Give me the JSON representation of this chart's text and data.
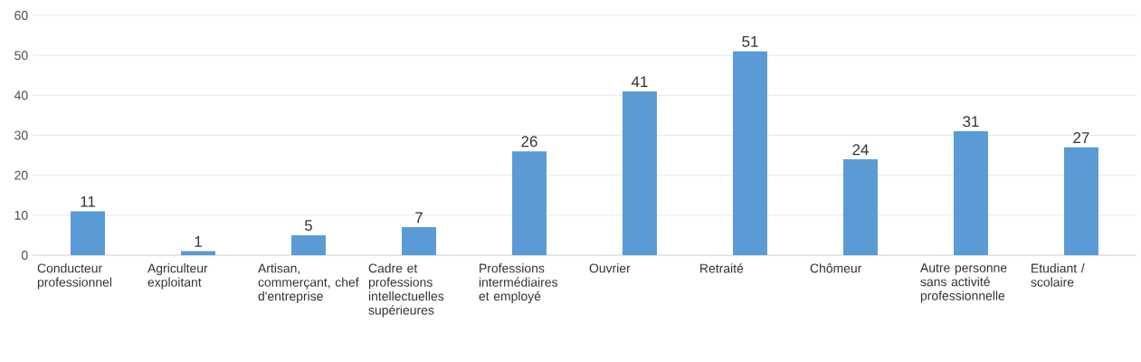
{
  "chart_data": {
    "type": "bar",
    "categories": [
      "Conducteur professionnel",
      "Agriculteur exploitant",
      "Artisan, commerçant, chef d'entreprise",
      "Cadre et professions intellectuelles supérieures",
      "Professions intermédiaires et employé",
      "Ouvrier",
      "Retraité",
      "Chômeur",
      "Autre personne sans activité professionnelle",
      "Etudiant / scolaire"
    ],
    "values": [
      11,
      1,
      5,
      7,
      26,
      41,
      51,
      24,
      31,
      27
    ],
    "color": "#5b9bd5",
    "ylim": [
      0,
      60
    ],
    "yticks": [
      0,
      10,
      20,
      30,
      40,
      50,
      60
    ],
    "grid": "y",
    "data_labels": true
  }
}
